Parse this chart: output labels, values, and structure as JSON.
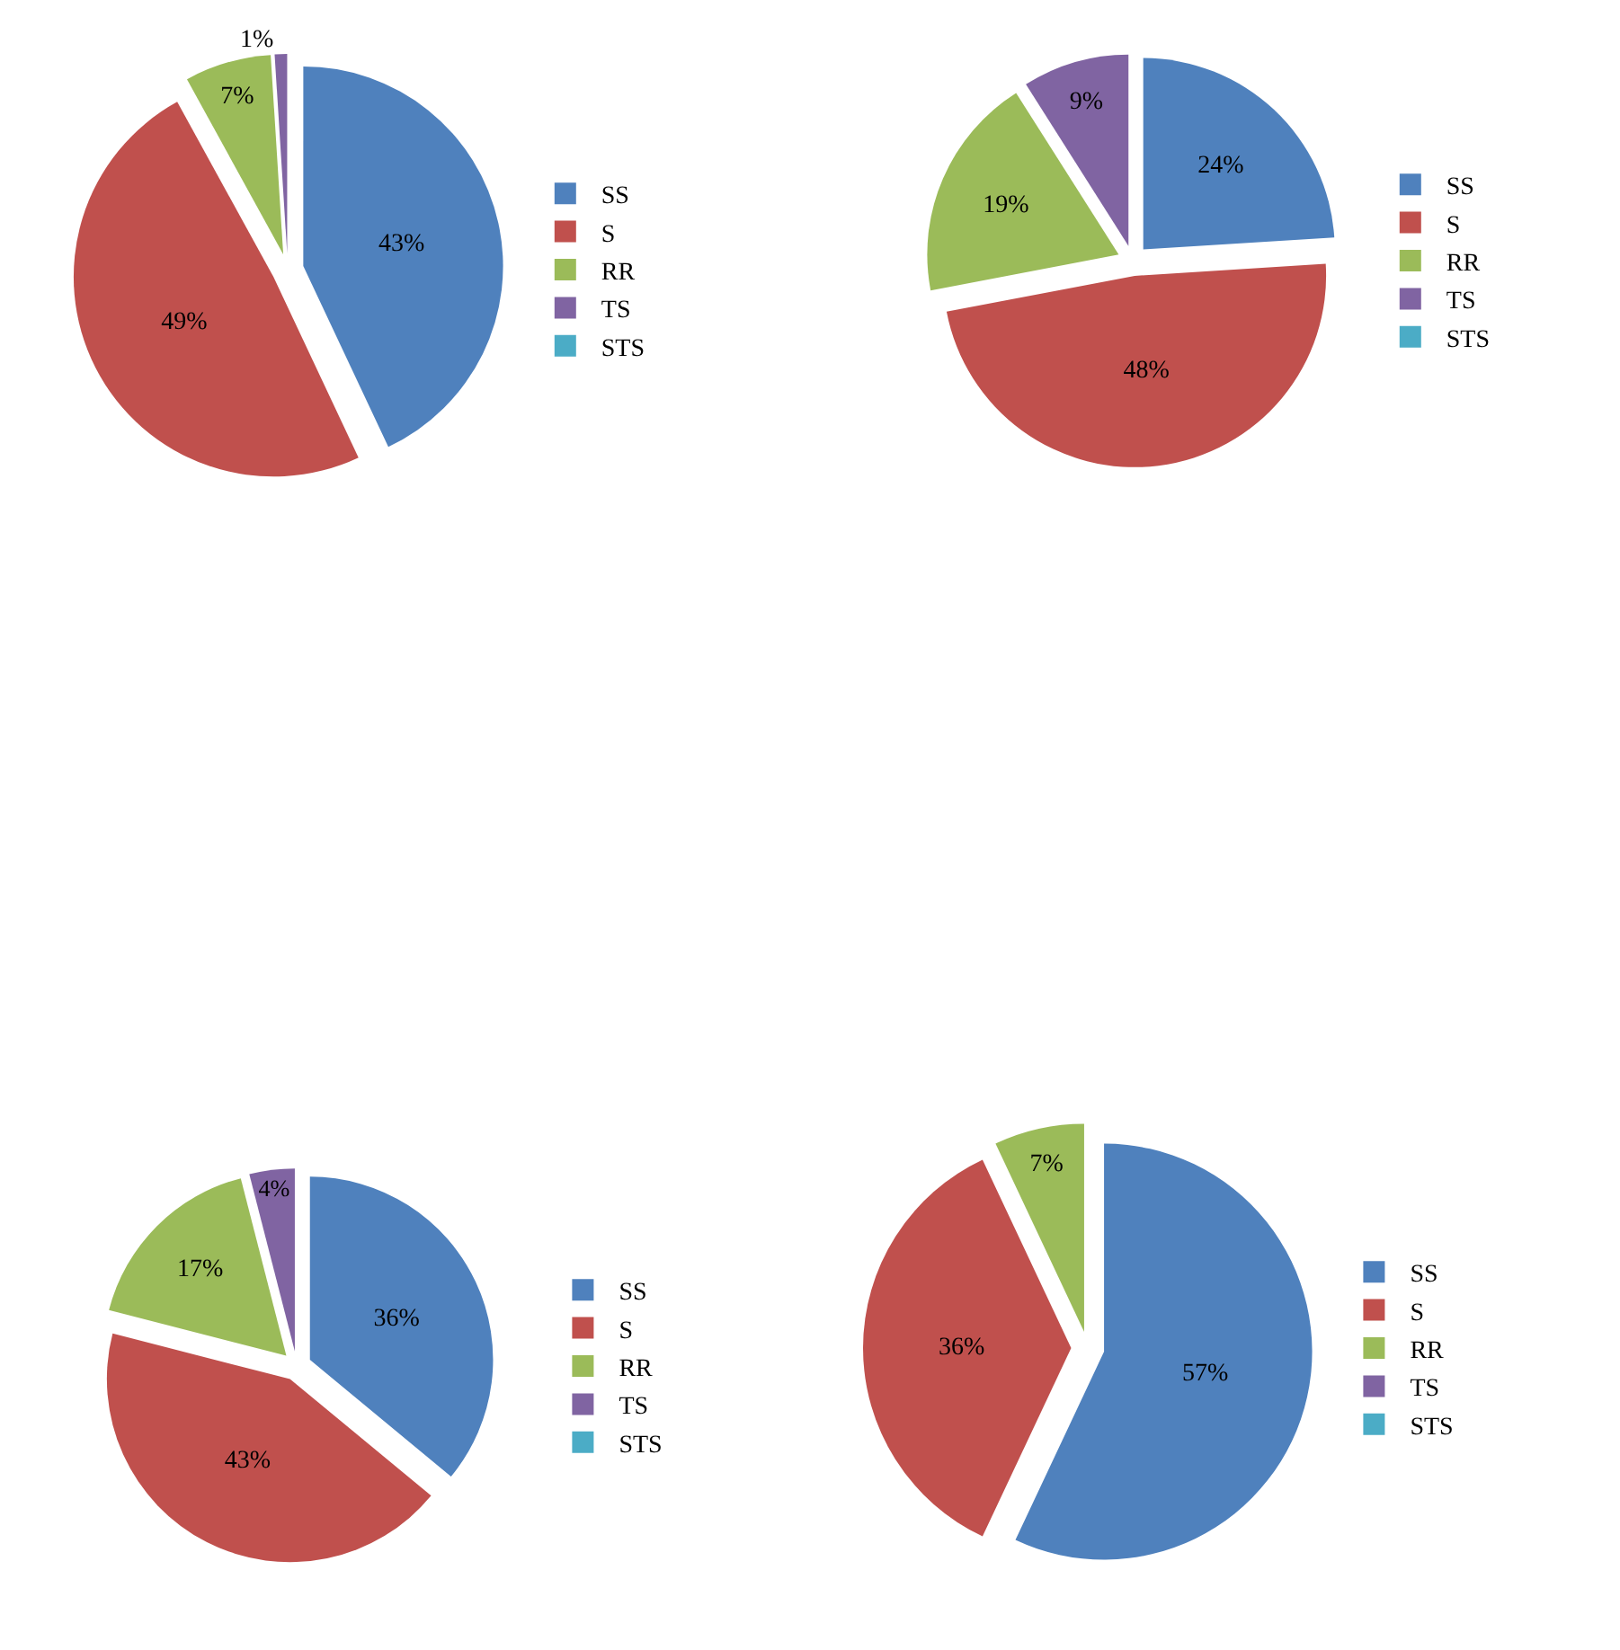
{
  "chart_data": [
    {
      "type": "pie",
      "categories": [
        "SS",
        "S",
        "RR",
        "TS",
        "STS"
      ],
      "values": [
        43,
        49,
        7,
        1,
        0
      ],
      "value_labels": [
        "43%",
        "49%",
        "7%",
        "1%",
        null
      ],
      "colors": [
        "#4f81bd",
        "#c0504d",
        "#9bbb59",
        "#8064a2",
        "#4bacc6"
      ],
      "legend": "right"
    },
    {
      "type": "pie",
      "categories": [
        "SS",
        "S",
        "RR",
        "TS",
        "STS"
      ],
      "values": [
        24,
        48,
        19,
        9,
        0
      ],
      "value_labels": [
        "24%",
        "48%",
        "19%",
        "9%",
        null
      ],
      "colors": [
        "#4f81bd",
        "#c0504d",
        "#9bbb59",
        "#8064a2",
        "#4bacc6"
      ],
      "legend": "right"
    },
    {
      "type": "pie",
      "categories": [
        "SS",
        "S",
        "RR",
        "TS",
        "STS"
      ],
      "values": [
        36,
        43,
        17,
        4,
        0
      ],
      "value_labels": [
        "36%",
        "43%",
        "17%",
        "4%",
        null
      ],
      "colors": [
        "#4f81bd",
        "#c0504d",
        "#9bbb59",
        "#8064a2",
        "#4bacc6"
      ],
      "legend": "right"
    },
    {
      "type": "pie",
      "categories": [
        "SS",
        "S",
        "RR",
        "TS",
        "STS"
      ],
      "values": [
        57,
        36,
        7,
        0,
        0
      ],
      "value_labels": [
        "57%",
        "36%",
        "7%",
        null,
        null
      ],
      "colors": [
        "#4f81bd",
        "#c0504d",
        "#9bbb59",
        "#8064a2",
        "#4bacc6"
      ],
      "legend": "right"
    }
  ]
}
